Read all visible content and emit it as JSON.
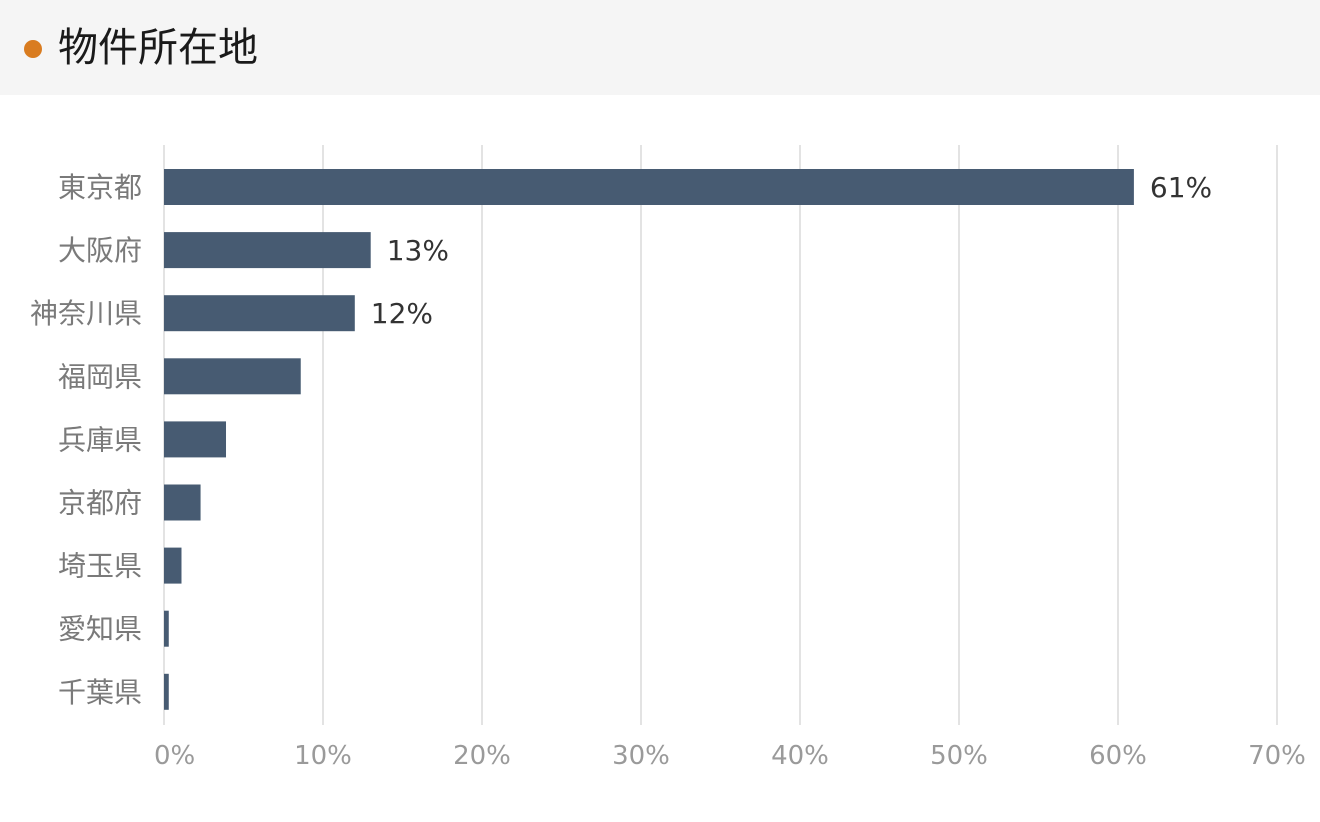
{
  "header": {
    "title": "物件所在地",
    "marker_color": "#d97c20"
  },
  "chart_data": {
    "type": "bar",
    "orientation": "horizontal",
    "categories": [
      "東京都",
      "大阪府",
      "神奈川県",
      "福岡県",
      "兵庫県",
      "京都府",
      "埼玉県",
      "愛知県",
      "千葉県"
    ],
    "values": [
      61,
      13,
      12,
      8.6,
      3.9,
      2.3,
      1.1,
      0.3,
      0.3
    ],
    "data_labels": [
      "61%",
      "13%",
      "12%",
      "",
      "",
      "",
      "",
      "",
      ""
    ],
    "x_ticks": [
      "0%",
      "10%",
      "20%",
      "30%",
      "40%",
      "50%",
      "60%",
      "70%"
    ],
    "xlim": [
      0,
      70
    ],
    "x_unit": "%",
    "grid": true,
    "colors": {
      "bar": "#475b72",
      "grid": "#e3e3e3",
      "category_label": "#7a7a7a",
      "tick_label": "#9a9a9a",
      "data_label": "#333333"
    }
  }
}
